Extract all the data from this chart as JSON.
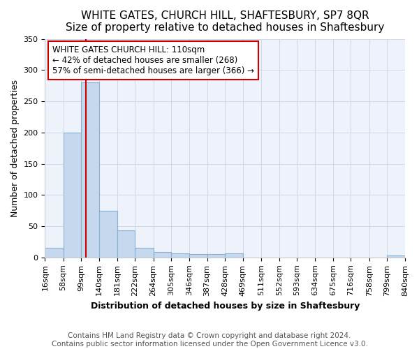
{
  "title": "WHITE GATES, CHURCH HILL, SHAFTESBURY, SP7 8QR",
  "subtitle": "Size of property relative to detached houses in Shaftesbury",
  "xlabel": "Distribution of detached houses by size in Shaftesbury",
  "ylabel": "Number of detached properties",
  "bin_edges": [
    16,
    58,
    99,
    140,
    181,
    222,
    264,
    305,
    346,
    387,
    428,
    469,
    511,
    552,
    593,
    634,
    675,
    716,
    758,
    799,
    840
  ],
  "bar_heights": [
    15,
    200,
    280,
    75,
    43,
    15,
    9,
    6,
    5,
    5,
    6,
    0,
    0,
    0,
    0,
    0,
    0,
    0,
    0,
    3
  ],
  "bar_color": "#c5d8ee",
  "bar_edge_color": "#8ab0d0",
  "background_color": "#ffffff",
  "plot_bg_color": "#eef3fb",
  "red_line_x": 110,
  "annotation_text": "WHITE GATES CHURCH HILL: 110sqm\n← 42% of detached houses are smaller (268)\n57% of semi-detached houses are larger (366) →",
  "annotation_box_color": "#ffffff",
  "annotation_box_edge": "#cc0000",
  "annotation_text_color": "#000000",
  "red_line_color": "#cc0000",
  "ylim": [
    0,
    350
  ],
  "yticks": [
    0,
    50,
    100,
    150,
    200,
    250,
    300,
    350
  ],
  "footer": "Contains HM Land Registry data © Crown copyright and database right 2024.\nContains public sector information licensed under the Open Government Licence v3.0.",
  "title_fontsize": 11,
  "xlabel_fontsize": 9,
  "ylabel_fontsize": 9,
  "tick_fontsize": 8,
  "footer_fontsize": 7.5,
  "annotation_fontsize": 8.5
}
